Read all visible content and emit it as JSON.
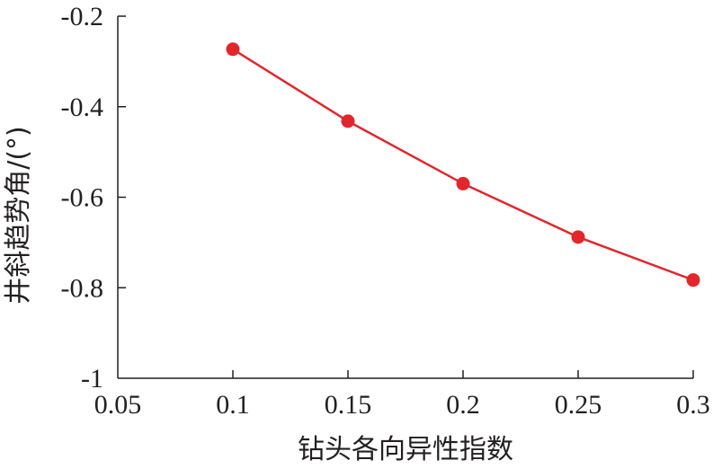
{
  "chart_data": {
    "type": "line",
    "title": "",
    "xlabel": "钻头各向异性指数",
    "ylabel": "井斜趋势角/(°)",
    "x": [
      0.1,
      0.15,
      0.2,
      0.25,
      0.3
    ],
    "series": [
      {
        "values": [
          -0.273,
          -0.432,
          -0.57,
          -0.688,
          -0.783
        ],
        "color": "#e3262b"
      }
    ],
    "xlim": [
      0.05,
      0.3
    ],
    "ylim": [
      -1,
      -0.2
    ],
    "xticks": [
      0.05,
      0.1,
      0.15,
      0.2,
      0.25,
      0.3
    ],
    "xtick_labels": [
      "0.05",
      "0.1",
      "0.15",
      "0.2",
      "0.25",
      "0.3"
    ],
    "yticks": [
      -1,
      -0.8,
      -0.6,
      -0.4,
      -0.2
    ],
    "ytick_labels": [
      "-1",
      "-0.8",
      "-0.6",
      "-0.4",
      "-0.2"
    ],
    "grid": false,
    "legend": "none",
    "marker": "circle"
  }
}
